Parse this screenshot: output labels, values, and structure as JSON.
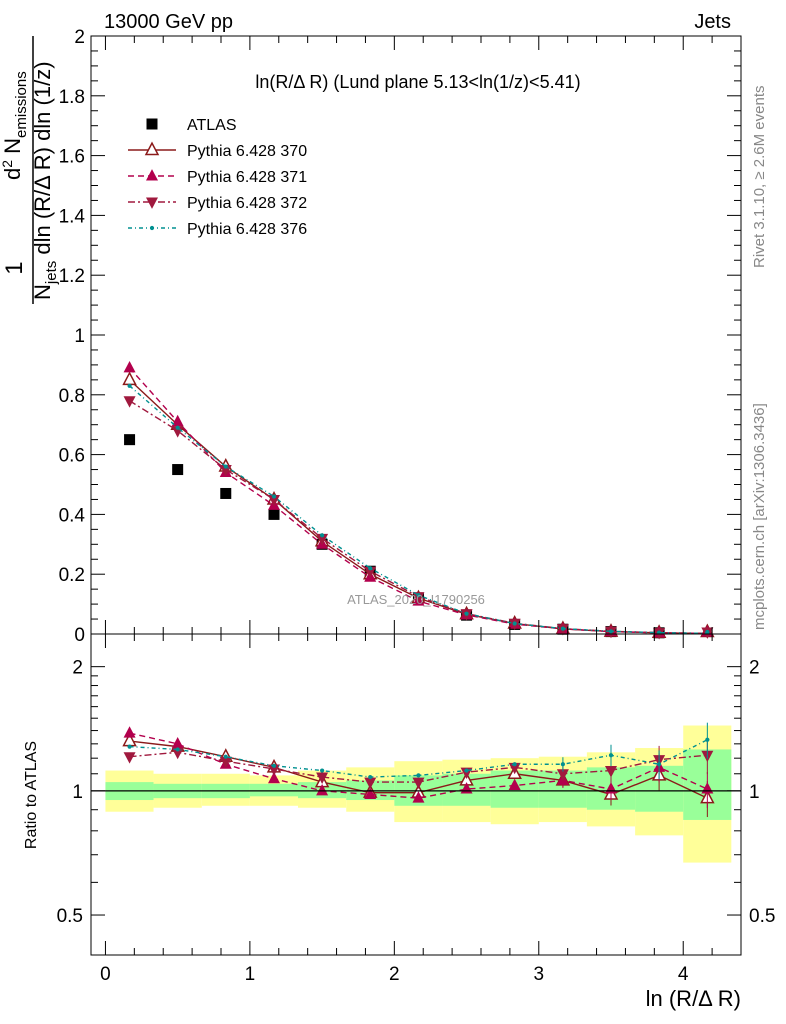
{
  "header": {
    "beam": "13000 GeV pp",
    "process": "Jets",
    "rivet": "Rivet 3.1.10, ≥ 2.6M events",
    "mcplots": "mcplots.cern.ch [arXiv:1306.3436]",
    "watermark": "ATLAS_2020_I1790256"
  },
  "chart_data": [
    {
      "type": "line",
      "panel": "main",
      "title": "ln(R/Δ R) (Lund plane 5.13<ln(1/z)<5.41)",
      "xlabel": "ln (R/Δ R)",
      "ylabel": "1/N_jets d²N_emissions / dln(R/ΔR) dln(1/z)",
      "xlim": [
        -0.1,
        4.4
      ],
      "ylim": [
        0,
        2
      ],
      "y_ticks": [
        "0",
        "0.2",
        "0.4",
        "0.6",
        "0.8",
        "1",
        "1.2",
        "1.4",
        "1.6",
        "1.8",
        "2"
      ],
      "x": [
        0.167,
        0.5,
        0.833,
        1.167,
        1.5,
        1.833,
        2.167,
        2.5,
        2.833,
        3.167,
        3.5,
        3.833,
        4.167
      ],
      "legend_position": "top-left",
      "series": [
        {
          "name": "ATLAS",
          "color": "#000000",
          "marker": "square",
          "style": "none",
          "values": [
            0.65,
            0.55,
            0.47,
            0.4,
            0.3,
            0.21,
            0.12,
            0.063,
            0.032,
            0.016,
            0.008,
            0.004,
            0.002
          ]
        },
        {
          "name": "Pythia 6.428 370",
          "color": "#8b1a1a",
          "marker": "open-triangle-up",
          "style": "solid",
          "values": [
            0.85,
            0.7,
            0.56,
            0.45,
            0.31,
            0.2,
            0.12,
            0.066,
            0.035,
            0.017,
            0.008,
            0.004,
            0.002
          ]
        },
        {
          "name": "Pythia 6.428 371",
          "color": "#b3004d",
          "marker": "triangle-up",
          "style": "dashed",
          "values": [
            0.89,
            0.71,
            0.54,
            0.43,
            0.3,
            0.19,
            0.11,
            0.064,
            0.033,
            0.017,
            0.008,
            0.004,
            0.002
          ]
        },
        {
          "name": "Pythia 6.428 372",
          "color": "#a0193e",
          "marker": "triangle-down",
          "style": "dashdot",
          "values": [
            0.78,
            0.68,
            0.55,
            0.45,
            0.32,
            0.21,
            0.125,
            0.068,
            0.036,
            0.018,
            0.009,
            0.0045,
            0.0022
          ]
        },
        {
          "name": "Pythia 6.428 376",
          "color": "#009090",
          "marker": "dot",
          "style": "dashdot-long",
          "values": [
            0.83,
            0.69,
            0.56,
            0.46,
            0.33,
            0.22,
            0.13,
            0.068,
            0.035,
            0.018,
            0.009,
            0.0045,
            0.0022
          ]
        }
      ]
    },
    {
      "type": "line",
      "panel": "ratio",
      "xlabel": "ln (R/Δ R)",
      "ylabel": "Ratio to ATLAS",
      "xlim": [
        -0.1,
        4.4
      ],
      "ylim": [
        0.4,
        2.4
      ],
      "y_scale": "log",
      "x_ticks": [
        "0",
        "1",
        "2",
        "3",
        "4"
      ],
      "y_ticks": [
        "0.5",
        "1",
        "2"
      ],
      "x": [
        0.167,
        0.5,
        0.833,
        1.167,
        1.5,
        1.833,
        2.167,
        2.5,
        2.833,
        3.167,
        3.5,
        3.833,
        4.167
      ],
      "bin_edges": [
        0.0,
        0.333,
        0.667,
        1.0,
        1.333,
        1.667,
        2.0,
        2.333,
        2.667,
        3.0,
        3.333,
        3.667,
        4.0,
        4.333
      ],
      "band_inner": {
        "color": "#99ff99",
        "low": [
          0.95,
          0.96,
          0.96,
          0.97,
          0.96,
          0.95,
          0.92,
          0.92,
          0.91,
          0.91,
          0.9,
          0.89,
          0.85
        ],
        "high": [
          1.05,
          1.04,
          1.04,
          1.04,
          1.05,
          1.06,
          1.09,
          1.1,
          1.12,
          1.12,
          1.14,
          1.15,
          1.26
        ]
      },
      "band_outer": {
        "color": "#ffff99",
        "low": [
          0.89,
          0.91,
          0.92,
          0.92,
          0.91,
          0.89,
          0.84,
          0.84,
          0.83,
          0.84,
          0.82,
          0.78,
          0.67
        ],
        "high": [
          1.12,
          1.1,
          1.1,
          1.09,
          1.12,
          1.14,
          1.18,
          1.19,
          1.2,
          1.21,
          1.24,
          1.27,
          1.44
        ]
      },
      "series": [
        {
          "name": "Pythia 6.428 370",
          "color": "#8b1a1a",
          "marker": "open-triangle-up",
          "style": "solid",
          "values": [
            1.32,
            1.28,
            1.21,
            1.14,
            1.05,
            0.99,
            0.99,
            1.06,
            1.1,
            1.06,
            0.98,
            1.09,
            0.96
          ]
        },
        {
          "name": "Pythia 6.428 371",
          "color": "#b3004d",
          "marker": "triangle-up",
          "style": "dashed",
          "values": [
            1.38,
            1.3,
            1.16,
            1.07,
            1.0,
            0.98,
            0.96,
            1.01,
            1.03,
            1.06,
            1.01,
            1.14,
            1.01
          ]
        },
        {
          "name": "Pythia 6.428 372",
          "color": "#a0193e",
          "marker": "triangle-down",
          "style": "dashdot",
          "values": [
            1.21,
            1.24,
            1.18,
            1.13,
            1.08,
            1.05,
            1.05,
            1.11,
            1.14,
            1.1,
            1.12,
            1.19,
            1.22
          ]
        },
        {
          "name": "Pythia 6.428 376",
          "color": "#009090",
          "marker": "dot",
          "style": "dashdot-long",
          "values": [
            1.28,
            1.26,
            1.21,
            1.15,
            1.12,
            1.08,
            1.09,
            1.12,
            1.16,
            1.16,
            1.22,
            1.16,
            1.33
          ]
        }
      ]
    }
  ]
}
